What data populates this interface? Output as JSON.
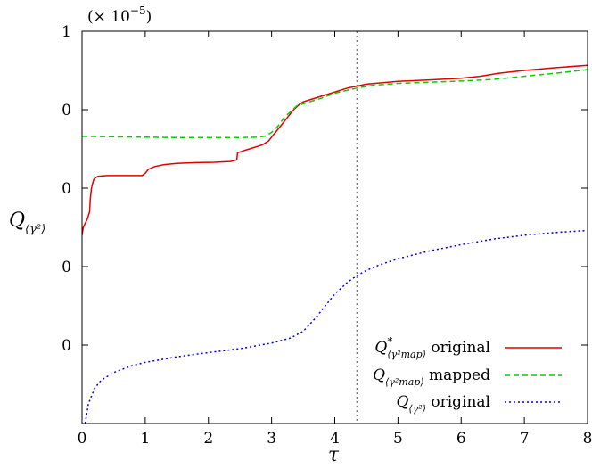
{
  "chart_data": {
    "type": "line",
    "title": "",
    "multiplier_label": "(× 10",
    "multiplier_exponent": "−5",
    "xlabel": "τ",
    "ylabel": "Q",
    "ylabel_sub": "⟨γ²⟩",
    "xlim": [
      0,
      8
    ],
    "ylim": [
      0,
      1
    ],
    "x_ticks": [
      0,
      1,
      2,
      3,
      4,
      5,
      6,
      7,
      8
    ],
    "x_tick_labels": [
      "0",
      "1",
      "2",
      "3",
      "4",
      "5",
      "6",
      "7",
      "8"
    ],
    "y_ticks": [
      0.2,
      0.4,
      0.6,
      0.8,
      1.0
    ],
    "y_tick_labels": [
      "0",
      "0",
      "0",
      "0",
      "1"
    ],
    "grid": false,
    "legend_position": "bottom-right",
    "vline": {
      "x": 4.35,
      "style": "dotted",
      "color": "#777777"
    },
    "series": [
      {
        "name": "original",
        "legend_symbol": "Q*",
        "legend_subscript": "⟨γ²map⟩",
        "color": "#e00000",
        "dash": "solid",
        "x": [
          0.0,
          0.02,
          0.05,
          0.08,
          0.1,
          0.12,
          0.13,
          0.15,
          0.18,
          0.2,
          0.25,
          0.3,
          0.4,
          0.6,
          0.8,
          0.95,
          1.0,
          1.05,
          1.15,
          1.3,
          1.5,
          1.8,
          2.1,
          2.35,
          2.45,
          2.46,
          2.55,
          2.65,
          2.75,
          2.85,
          2.95,
          3.0,
          3.05,
          3.15,
          3.25,
          3.35,
          3.45,
          3.5,
          3.6,
          3.8,
          4.0,
          4.2,
          4.35,
          4.5,
          4.7,
          5.0,
          5.5,
          6.0,
          6.3,
          6.6,
          7.0,
          7.5,
          8.0
        ],
        "y": [
          0.48,
          0.5,
          0.51,
          0.52,
          0.53,
          0.54,
          0.57,
          0.6,
          0.62,
          0.625,
          0.63,
          0.631,
          0.632,
          0.632,
          0.632,
          0.632,
          0.638,
          0.648,
          0.655,
          0.66,
          0.663,
          0.665,
          0.666,
          0.668,
          0.672,
          0.69,
          0.695,
          0.7,
          0.705,
          0.71,
          0.72,
          0.73,
          0.74,
          0.76,
          0.78,
          0.8,
          0.815,
          0.82,
          0.825,
          0.835,
          0.845,
          0.855,
          0.86,
          0.865,
          0.868,
          0.872,
          0.876,
          0.88,
          0.885,
          0.893,
          0.9,
          0.907,
          0.913
        ]
      },
      {
        "name": "mapped",
        "legend_symbol": "Q",
        "legend_subscript": "⟨γ²map⟩",
        "color": "#00d000",
        "dash": "6,4",
        "x": [
          0.0,
          0.1,
          0.5,
          1.0,
          1.5,
          2.0,
          2.5,
          2.8,
          2.9,
          3.0,
          3.1,
          3.2,
          3.3,
          3.4,
          3.5,
          3.6,
          3.8,
          4.0,
          4.35,
          4.6,
          5.0,
          5.5,
          6.0,
          6.5,
          7.0,
          7.5,
          8.0
        ],
        "y": [
          0.732,
          0.732,
          0.731,
          0.73,
          0.729,
          0.729,
          0.729,
          0.73,
          0.733,
          0.742,
          0.758,
          0.78,
          0.795,
          0.81,
          0.815,
          0.82,
          0.83,
          0.842,
          0.855,
          0.862,
          0.867,
          0.87,
          0.873,
          0.877,
          0.885,
          0.893,
          0.902
        ]
      },
      {
        "name": "original",
        "legend_symbol": "Q",
        "legend_subscript": "⟨γ²⟩",
        "color": "#0000e0",
        "dash": "2,3",
        "x": [
          0.05,
          0.08,
          0.1,
          0.15,
          0.2,
          0.3,
          0.5,
          0.8,
          1.0,
          1.5,
          2.0,
          2.5,
          3.0,
          3.3,
          3.5,
          3.6,
          3.7,
          3.8,
          3.9,
          4.0,
          4.1,
          4.2,
          4.35,
          4.5,
          4.7,
          5.0,
          5.5,
          6.0,
          6.5,
          7.0,
          7.5,
          8.0
        ],
        "y": [
          0.0,
          0.03,
          0.05,
          0.07,
          0.09,
          0.11,
          0.13,
          0.148,
          0.156,
          0.17,
          0.181,
          0.191,
          0.205,
          0.218,
          0.235,
          0.252,
          0.27,
          0.29,
          0.31,
          0.33,
          0.345,
          0.36,
          0.377,
          0.39,
          0.404,
          0.42,
          0.44,
          0.456,
          0.47,
          0.48,
          0.487,
          0.492
        ]
      }
    ]
  }
}
